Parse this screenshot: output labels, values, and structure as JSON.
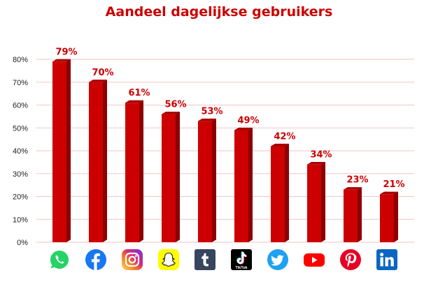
{
  "chart_data": {
    "type": "bar",
    "title": "Aandeel dagelijkse gebruikers",
    "xlabel": "",
    "ylabel": "",
    "categories": [
      "WhatsApp",
      "Facebook",
      "Instagram",
      "Snapchat",
      "Tumblr",
      "TikTok",
      "Twitter",
      "YouTube",
      "Pinterest",
      "LinkedIn"
    ],
    "values": [
      79,
      70,
      61,
      56,
      53,
      49,
      42,
      34,
      23,
      21
    ],
    "value_labels": [
      "79%",
      "70%",
      "61%",
      "56%",
      "53%",
      "49%",
      "42%",
      "34%",
      "23%",
      "21%"
    ],
    "ylim": [
      0,
      80
    ],
    "yticks": [
      0,
      10,
      20,
      30,
      40,
      50,
      60,
      70,
      80
    ],
    "ytick_labels": [
      "0%",
      "10%",
      "20%",
      "30%",
      "40%",
      "50%",
      "60%",
      "70%",
      "80%"
    ],
    "grid": true,
    "legend": "none",
    "icons": [
      "whatsapp-icon",
      "facebook-icon",
      "instagram-icon",
      "snapchat-icon",
      "tumblr-icon",
      "tiktok-icon",
      "twitter-icon",
      "youtube-icon",
      "pinterest-icon",
      "linkedin-icon"
    ],
    "icon_labels": {
      "tiktok": "TikTok"
    },
    "colors": {
      "bar": "#cc0000",
      "bar_side": "#8b0000",
      "bar_top": "#a80000",
      "label": "#cc0000",
      "grid": "#f2c4c4"
    }
  }
}
